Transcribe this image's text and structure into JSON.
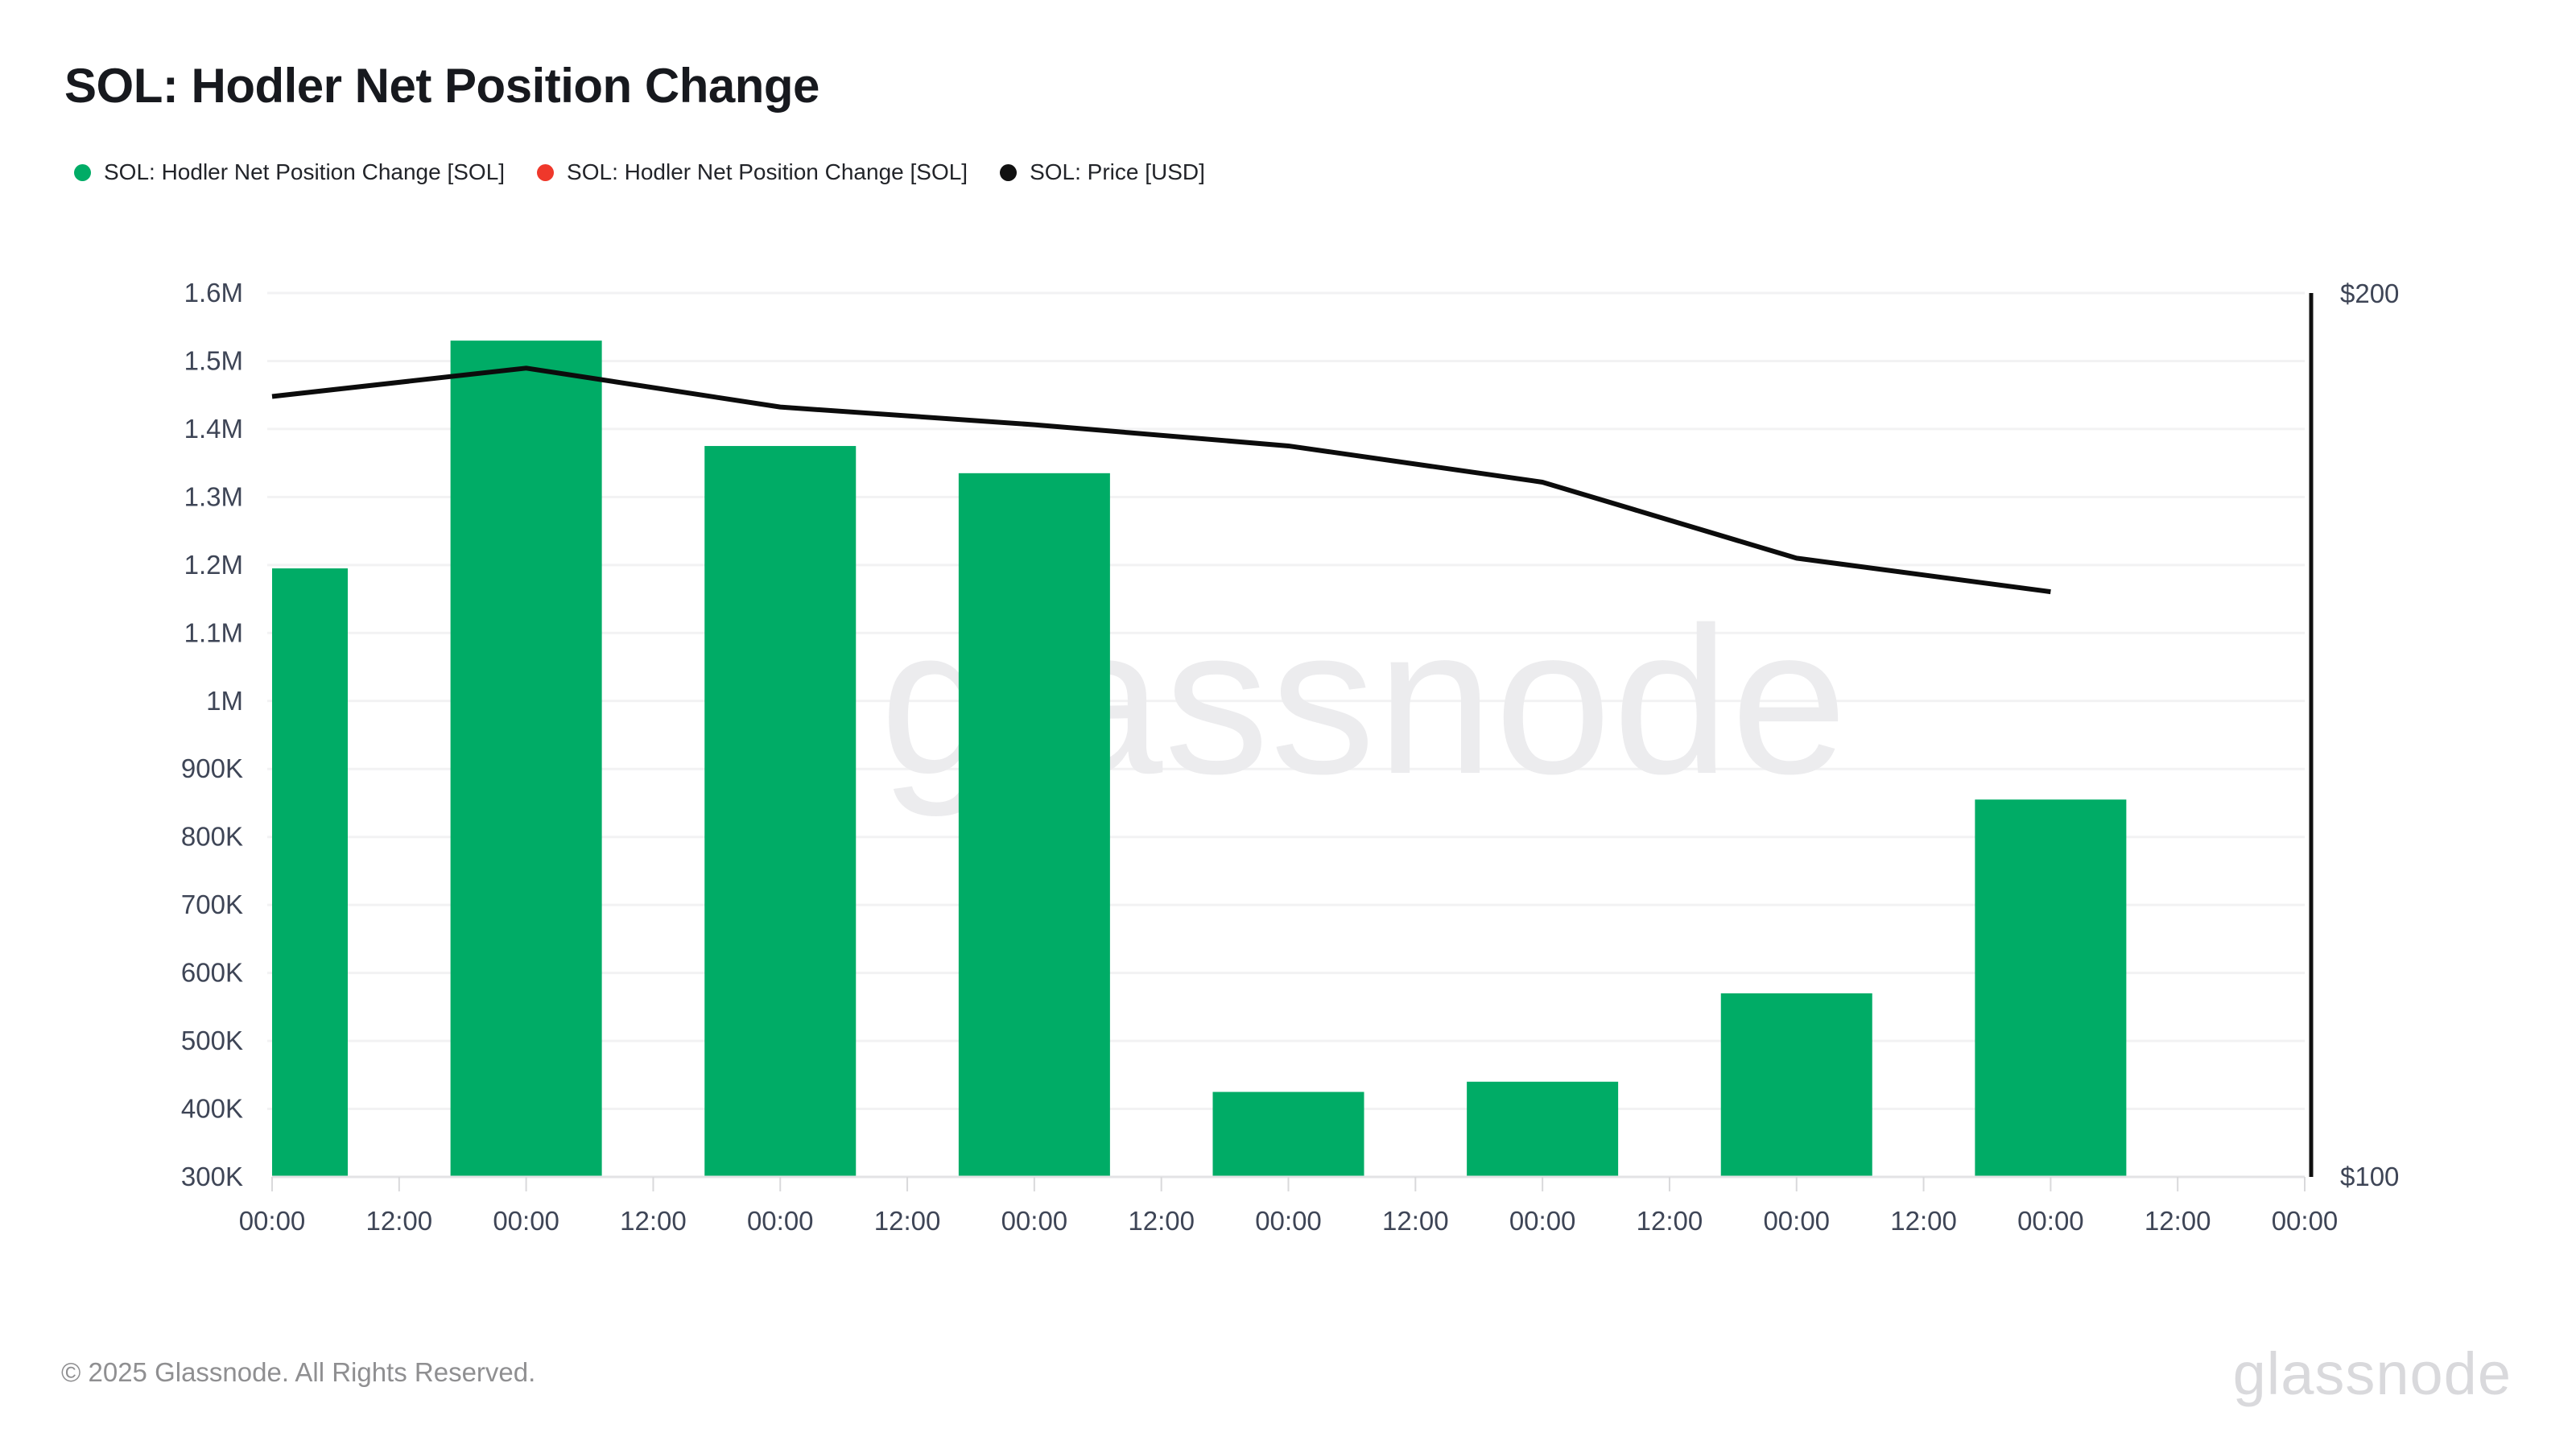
{
  "header": {
    "title": "SOL: Hodler Net Position Change"
  },
  "legend": {
    "items": [
      {
        "label": "SOL: Hodler Net Position Change [SOL]",
        "color": "#00ac66"
      },
      {
        "label": "SOL: Hodler Net Position Change [SOL]",
        "color": "#ef382b"
      },
      {
        "label": "SOL: Price [USD]",
        "color": "#111111"
      }
    ]
  },
  "watermark": "glassnode",
  "footer": {
    "copyright": "© 2025 Glassnode. All Rights Reserved.",
    "brand": "glassnode"
  },
  "chart_data": {
    "type": "bar+line",
    "title": "SOL: Hodler Net Position Change",
    "grid": true,
    "x_axis": {
      "tick_labels": [
        "00:00",
        "12:00",
        "00:00",
        "12:00",
        "00:00",
        "12:00",
        "00:00",
        "12:00",
        "00:00",
        "12:00",
        "00:00",
        "12:00",
        "00:00",
        "12:00",
        "00:00",
        "12:00",
        "00:00"
      ],
      "tick_interval": "12h"
    },
    "left_y_axis": {
      "min": 300000,
      "max": 1600000,
      "tick_step": 100000,
      "tick_labels": [
        "300K",
        "400K",
        "500K",
        "600K",
        "700K",
        "800K",
        "900K",
        "1M",
        "1.1M",
        "1.2M",
        "1.3M",
        "1.4M",
        "1.5M",
        "1.6M"
      ]
    },
    "right_y_axis": {
      "min": 100,
      "max": 200,
      "unit": "USD",
      "labels": {
        "top": "$200",
        "bottom": "$100"
      }
    },
    "series": [
      {
        "name": "SOL: Hodler Net Position Change [SOL]",
        "type": "bar",
        "axis": "left",
        "color": "#00ac66",
        "points": [
          {
            "tick": 0,
            "x_label": "00:00",
            "value": 1195000
          },
          {
            "tick": 2,
            "x_label": "00:00",
            "value": 1530000
          },
          {
            "tick": 4,
            "x_label": "00:00",
            "value": 1375000
          },
          {
            "tick": 6,
            "x_label": "00:00",
            "value": 1335000
          },
          {
            "tick": 8,
            "x_label": "00:00",
            "value": 425000
          },
          {
            "tick": 10,
            "x_label": "00:00",
            "value": 440000
          },
          {
            "tick": 12,
            "x_label": "00:00",
            "value": 570000
          },
          {
            "tick": 14,
            "x_label": "00:00",
            "value": 855000
          }
        ]
      },
      {
        "name": "SOL: Hodler Net Position Change [SOL]",
        "type": "bar",
        "axis": "left",
        "color": "#ef382b",
        "points": []
      },
      {
        "name": "SOL: Price [USD]",
        "type": "line",
        "axis": "right",
        "color": "#0c0c0c",
        "points": [
          {
            "tick": 0,
            "x_label": "00:00",
            "value": 188.3
          },
          {
            "tick": 2,
            "x_label": "00:00",
            "value": 191.5
          },
          {
            "tick": 4,
            "x_label": "00:00",
            "value": 187.1
          },
          {
            "tick": 6,
            "x_label": "00:00",
            "value": 185.1
          },
          {
            "tick": 8,
            "x_label": "00:00",
            "value": 182.7
          },
          {
            "tick": 10,
            "x_label": "00:00",
            "value": 178.6
          },
          {
            "tick": 12,
            "x_label": "00:00",
            "value": 170.0
          },
          {
            "tick": 14,
            "x_label": "00:00",
            "value": 166.2
          }
        ]
      }
    ]
  }
}
